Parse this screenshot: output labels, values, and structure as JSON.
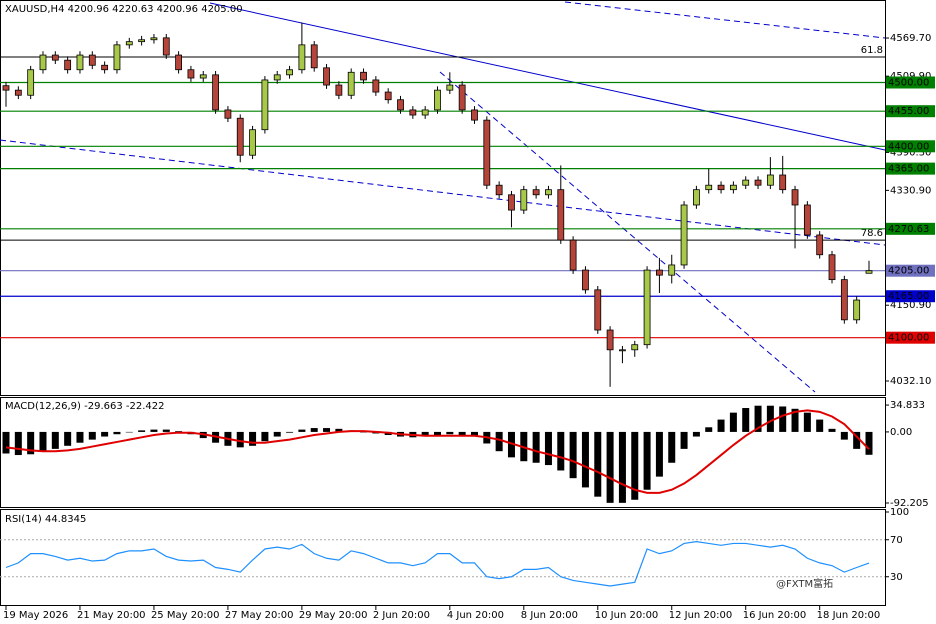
{
  "chart_data": {
    "type": "candlestick",
    "title": "XAUUSD,H4  4200.96 4220.63 4200.96 4205.00",
    "categories": [
      "19 May 2026",
      null,
      null,
      null,
      null,
      null,
      "21 May 20:00",
      null,
      null,
      null,
      null,
      null,
      "25 May 20:00",
      null,
      null,
      null,
      null,
      null,
      "27 May 20:00",
      null,
      null,
      null,
      null,
      null,
      "29 May 20:00",
      null,
      null,
      null,
      null,
      null,
      "2 Jun 20:00",
      null,
      null,
      null,
      null,
      null,
      "4 Jun 20:00",
      null,
      null,
      null,
      null,
      null,
      "8 Jun 20:00",
      null,
      null,
      null,
      null,
      null,
      "10 Jun 20:00",
      null,
      null,
      null,
      null,
      null,
      "12 Jun 20:00",
      null,
      null,
      null,
      null,
      null,
      "16 Jun 20:00",
      null,
      null,
      null,
      null,
      null,
      "18 Jun 20:00",
      null,
      null,
      null,
      null
    ],
    "open": [
      4495,
      4488,
      4480,
      4520,
      4543,
      4535,
      4520,
      4543,
      4527,
      4520,
      4559,
      4564,
      4567,
      4570,
      4543,
      4520,
      4507,
      4512,
      4457,
      4444,
      4386,
      4426,
      4504,
      4512,
      4520,
      4559,
      4523,
      4496,
      4480,
      4516,
      4504,
      4485,
      4473,
      4457,
      4449,
      4457,
      4488,
      4496,
      4457,
      4441,
      4339,
      4324,
      4300,
      4332,
      4324,
      4332,
      4253,
      4206,
      4175,
      4112,
      4081,
      4081,
      4089,
      4206,
      4198,
      4214,
      4308,
      4332,
      4339,
      4332,
      4339,
      4347,
      4339,
      4355,
      4332,
      4308,
      4261,
      4230,
      4191,
      4128,
      4200.96
    ],
    "high": [
      4501,
      4494,
      4526,
      4549,
      4549,
      4541,
      4549,
      4549,
      4533,
      4565,
      4570,
      4573,
      4576,
      4576,
      4549,
      4526,
      4518,
      4518,
      4463,
      4450,
      4432,
      4510,
      4518,
      4526,
      4594,
      4565,
      4529,
      4502,
      4522,
      4522,
      4510,
      4491,
      4479,
      4463,
      4463,
      4494,
      4516,
      4502,
      4463,
      4447,
      4345,
      4330,
      4338,
      4338,
      4338,
      4370,
      4259,
      4212,
      4181,
      4118,
      4087,
      4095,
      4212,
      4225,
      4230,
      4314,
      4338,
      4365,
      4345,
      4345,
      4353,
      4353,
      4383,
      4385,
      4338,
      4314,
      4267,
      4236,
      4197,
      4165,
      4220.63
    ],
    "low": [
      4462,
      4474,
      4474,
      4514,
      4529,
      4514,
      4514,
      4521,
      4514,
      4514,
      4553,
      4558,
      4561,
      4537,
      4514,
      4501,
      4501,
      4451,
      4438,
      4375,
      4380,
      4420,
      4498,
      4506,
      4514,
      4517,
      4490,
      4474,
      4474,
      4498,
      4479,
      4467,
      4451,
      4443,
      4443,
      4451,
      4482,
      4451,
      4435,
      4333,
      4318,
      4273,
      4294,
      4318,
      4318,
      4247,
      4200,
      4169,
      4106,
      4023,
      4060,
      4070,
      4083,
      4170,
      4185,
      4208,
      4302,
      4326,
      4326,
      4326,
      4333,
      4333,
      4333,
      4326,
      4240,
      4255,
      4224,
      4185,
      4122,
      4122,
      4200.96
    ],
    "close": [
      4488,
      4480,
      4520,
      4543,
      4535,
      4520,
      4543,
      4527,
      4520,
      4559,
      4564,
      4567,
      4570,
      4543,
      4520,
      4507,
      4512,
      4457,
      4444,
      4386,
      4426,
      4504,
      4512,
      4520,
      4559,
      4523,
      4496,
      4480,
      4516,
      4504,
      4485,
      4473,
      4457,
      4449,
      4457,
      4488,
      4496,
      4457,
      4441,
      4339,
      4324,
      4300,
      4332,
      4324,
      4332,
      4253,
      4206,
      4175,
      4112,
      4081,
      4081,
      4089,
      4206,
      4198,
      4214,
      4308,
      4332,
      4339,
      4332,
      4339,
      4347,
      4339,
      4355,
      4332,
      4308,
      4261,
      4230,
      4191,
      4128,
      4159,
      4205.0
    ],
    "up_color": "#a8c84a",
    "down_color": "#b5453a",
    "ylim": [
      4013.3,
      4629.3
    ],
    "yticks": [
      {
        "value": 4569.7,
        "label": "4569.70"
      },
      {
        "value": 4509.9,
        "label": "4509.90"
      },
      {
        "value": 4390.3,
        "label": "4390.30"
      },
      {
        "value": 4330.9,
        "label": "4330.90"
      },
      {
        "value": 4150.9,
        "label": "4150.90"
      },
      {
        "value": 4032.1,
        "label": "4032.10"
      }
    ],
    "levels": [
      {
        "value": 4500,
        "label": "4500.00",
        "color": "#008000"
      },
      {
        "value": 4455,
        "label": "4455.00",
        "color": "#008000"
      },
      {
        "value": 4400,
        "label": "4400.00",
        "color": "#008000"
      },
      {
        "value": 4365,
        "label": "4365.00",
        "color": "#008000"
      },
      {
        "value": 4270.63,
        "label": "4270.63",
        "color": "#008000"
      },
      {
        "value": 4205,
        "label": "4205.00",
        "color": "#7070c0"
      },
      {
        "value": 4165,
        "label": "4165.00",
        "color": "#0000cc"
      },
      {
        "value": 4100,
        "label": "4100.00",
        "color": "#e00000"
      }
    ],
    "fib_levels": [
      {
        "value": 4540,
        "label": "61.8"
      },
      {
        "value": 4253,
        "label": "78.6"
      }
    ],
    "macd": {
      "title": "MACD(12,26,9) -29.663 -22.422",
      "histogram": [
        -28,
        -30,
        -29,
        -26,
        -22,
        -18,
        -14,
        -10,
        -6,
        -3,
        0,
        2,
        3,
        3,
        1,
        -3,
        -8,
        -14,
        -18,
        -20,
        -18,
        -12,
        -6,
        -1,
        3,
        5,
        5,
        4,
        2,
        0,
        -2,
        -4,
        -6,
        -7,
        -6,
        -5,
        -3,
        -4,
        -6,
        -15,
        -25,
        -33,
        -38,
        -40,
        -43,
        -50,
        -60,
        -72,
        -84,
        -92,
        -92,
        -88,
        -75,
        -58,
        -40,
        -22,
        -6,
        6,
        16,
        25,
        31,
        34,
        34,
        33,
        30,
        25,
        16,
        4,
        -10,
        -22,
        -29.663
      ],
      "signal": [
        -20,
        -22,
        -24,
        -25,
        -25,
        -24,
        -22,
        -19,
        -16,
        -13,
        -10,
        -7,
        -4,
        -2,
        -1,
        -1,
        -3,
        -6,
        -9,
        -12,
        -14,
        -14,
        -12,
        -10,
        -7,
        -4,
        -2,
        0,
        1,
        1,
        0,
        -1,
        -3,
        -4,
        -5,
        -5,
        -5,
        -5,
        -5,
        -7,
        -10,
        -15,
        -20,
        -25,
        -29,
        -33,
        -38,
        -45,
        -52,
        -60,
        -68,
        -75,
        -79,
        -79,
        -75,
        -67,
        -56,
        -43,
        -30,
        -17,
        -5,
        5,
        14,
        21,
        26,
        28,
        26,
        20,
        10,
        -6,
        -22.422
      ],
      "hist_color": "#000000",
      "signal_color": "#e00000",
      "ylim": [
        -97.4,
        44
      ],
      "yticks": [
        {
          "value": 34.833,
          "label": "34.833"
        },
        {
          "value": 0,
          "label": "0.00"
        },
        {
          "value": -92.205,
          "label": "-92.205"
        }
      ]
    },
    "rsi": {
      "title": "RSI(14) 44.8345",
      "values": [
        40,
        45,
        55,
        55,
        52,
        48,
        50,
        47,
        48,
        55,
        58,
        58,
        60,
        52,
        48,
        47,
        48,
        40,
        38,
        35,
        48,
        60,
        62,
        60,
        65,
        55,
        50,
        48,
        58,
        55,
        50,
        45,
        45,
        42,
        45,
        55,
        55,
        45,
        45,
        30,
        28,
        30,
        38,
        38,
        40,
        30,
        26,
        24,
        22,
        20,
        22,
        24,
        60,
        55,
        58,
        66,
        68,
        66,
        64,
        66,
        66,
        64,
        62,
        64,
        60,
        50,
        45,
        42,
        35,
        40,
        44.8345
      ],
      "color": "#1e90ff",
      "ylim": [
        0,
        100
      ],
      "yticks": [
        100,
        70,
        30
      ],
      "levels": [
        70,
        30
      ]
    },
    "watermark": "@FXTM富拓"
  }
}
